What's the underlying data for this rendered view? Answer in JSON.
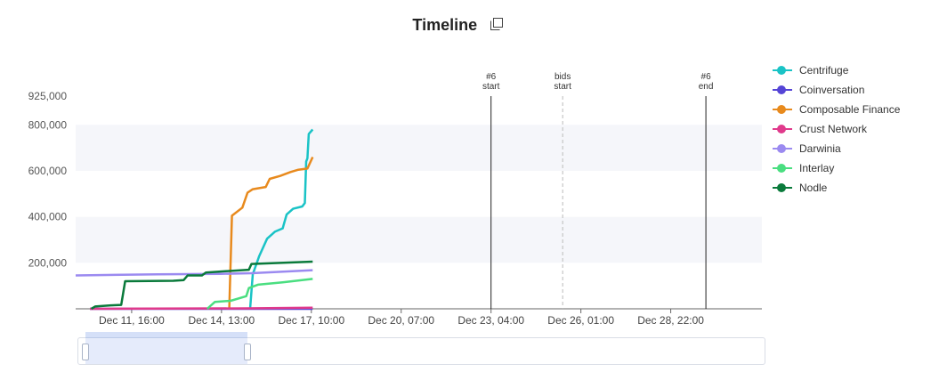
{
  "header": {
    "title": "Timeline",
    "copy_icon": "copy-icon"
  },
  "chart_data": {
    "type": "line",
    "title": "Timeline",
    "x_axis": {
      "type": "time",
      "range": [
        "2021-12-09T21:00",
        "2021-12-31T20:00"
      ],
      "tick_labels": [
        "Dec 11, 16:00",
        "Dec 14, 13:00",
        "Dec 17, 10:00",
        "Dec 20, 07:00",
        "Dec 23, 04:00",
        "Dec 26, 01:00",
        "Dec 28, 22:00"
      ],
      "tick_values": [
        "2021-12-11T16:00",
        "2021-12-14T13:00",
        "2021-12-17T10:00",
        "2021-12-20T07:00",
        "2021-12-23T04:00",
        "2021-12-26T01:00",
        "2021-12-28T22:00"
      ]
    },
    "y_axis": {
      "range": [
        0,
        925000
      ],
      "tick_labels": [
        "200,000",
        "400,000",
        "600,000",
        "800,000",
        "925,000"
      ],
      "tick_values": [
        200000,
        400000,
        600000,
        800000,
        925000
      ],
      "banded_grid": true
    },
    "markers": [
      {
        "label_line1": "#6",
        "label_line2": "start",
        "x": "2021-12-23T04:00",
        "style": "solid"
      },
      {
        "label_line1": "bids",
        "label_line2": "start",
        "x": "2021-12-25T11:00",
        "style": "dashed"
      },
      {
        "label_line1": "#6",
        "label_line2": "end",
        "x": "2021-12-30T01:00",
        "style": "solid"
      }
    ],
    "legend_position": "right",
    "series": [
      {
        "name": "Centrifuge",
        "color": "#1ac3c6",
        "points": [
          [
            "2021-12-15T11:00",
            0
          ],
          [
            "2021-12-15T13:00",
            150000
          ],
          [
            "2021-12-15T18:00",
            230000
          ],
          [
            "2021-12-16T00:00",
            305000
          ],
          [
            "2021-12-16T06:00",
            335000
          ],
          [
            "2021-12-16T12:00",
            350000
          ],
          [
            "2021-12-16T15:00",
            410000
          ],
          [
            "2021-12-16T20:00",
            435000
          ],
          [
            "2021-12-17T03:00",
            445000
          ],
          [
            "2021-12-17T05:00",
            460000
          ],
          [
            "2021-12-17T06:00",
            640000
          ],
          [
            "2021-12-17T07:00",
            655000
          ],
          [
            "2021-12-17T08:00",
            760000
          ],
          [
            "2021-12-17T11:00",
            780000
          ]
        ]
      },
      {
        "name": "Coinversation",
        "color": "#5545d6",
        "points": [
          [
            "2021-12-10T08:00",
            0
          ],
          [
            "2021-12-17T11:00",
            0
          ]
        ]
      },
      {
        "name": "Composable Finance",
        "color": "#e88a1d",
        "points": [
          [
            "2021-12-14T19:00",
            0
          ],
          [
            "2021-12-14T21:00",
            405000
          ],
          [
            "2021-12-15T05:00",
            440000
          ],
          [
            "2021-12-15T09:00",
            505000
          ],
          [
            "2021-12-15T13:00",
            520000
          ],
          [
            "2021-12-15T23:00",
            530000
          ],
          [
            "2021-12-16T02:00",
            565000
          ],
          [
            "2021-12-16T10:00",
            578000
          ],
          [
            "2021-12-16T18:00",
            595000
          ],
          [
            "2021-12-17T00:00",
            605000
          ],
          [
            "2021-12-17T07:00",
            610000
          ],
          [
            "2021-12-17T11:00",
            660000
          ]
        ]
      },
      {
        "name": "Crust Network",
        "color": "#e03a8c",
        "points": [
          [
            "2021-12-10T08:00",
            0
          ],
          [
            "2021-12-15T08:00",
            2000
          ],
          [
            "2021-12-17T11:00",
            5000
          ]
        ]
      },
      {
        "name": "Darwinia",
        "color": "#9b8af0",
        "points": [
          [
            "2021-12-09T21:00",
            145000
          ],
          [
            "2021-12-12T12:00",
            150000
          ],
          [
            "2021-12-14T12:00",
            152000
          ],
          [
            "2021-12-15T12:00",
            155000
          ],
          [
            "2021-12-17T11:00",
            168000
          ]
        ]
      },
      {
        "name": "Interlay",
        "color": "#4ade80",
        "points": [
          [
            "2021-12-14T02:00",
            0
          ],
          [
            "2021-12-14T08:00",
            30000
          ],
          [
            "2021-12-14T20:00",
            35000
          ],
          [
            "2021-12-15T08:00",
            55000
          ],
          [
            "2021-12-15T10:00",
            90000
          ],
          [
            "2021-12-15T17:00",
            105000
          ],
          [
            "2021-12-16T12:00",
            115000
          ],
          [
            "2021-12-17T11:00",
            130000
          ]
        ]
      },
      {
        "name": "Nodle",
        "color": "#0a7a3b",
        "points": [
          [
            "2021-12-10T09:00",
            0
          ],
          [
            "2021-12-10T12:00",
            10000
          ],
          [
            "2021-12-11T00:00",
            15000
          ],
          [
            "2021-12-11T08:00",
            17000
          ],
          [
            "2021-12-11T11:00",
            120000
          ],
          [
            "2021-12-13T00:00",
            122000
          ],
          [
            "2021-12-13T08:00",
            125000
          ],
          [
            "2021-12-13T11:00",
            145000
          ],
          [
            "2021-12-13T22:00",
            145000
          ],
          [
            "2021-12-14T01:00",
            158000
          ],
          [
            "2021-12-15T10:00",
            170000
          ],
          [
            "2021-12-15T12:00",
            195000
          ],
          [
            "2021-12-17T11:00",
            205000
          ]
        ]
      }
    ]
  },
  "data_zoom": {
    "handle_icon": "drag-handle-icon"
  }
}
